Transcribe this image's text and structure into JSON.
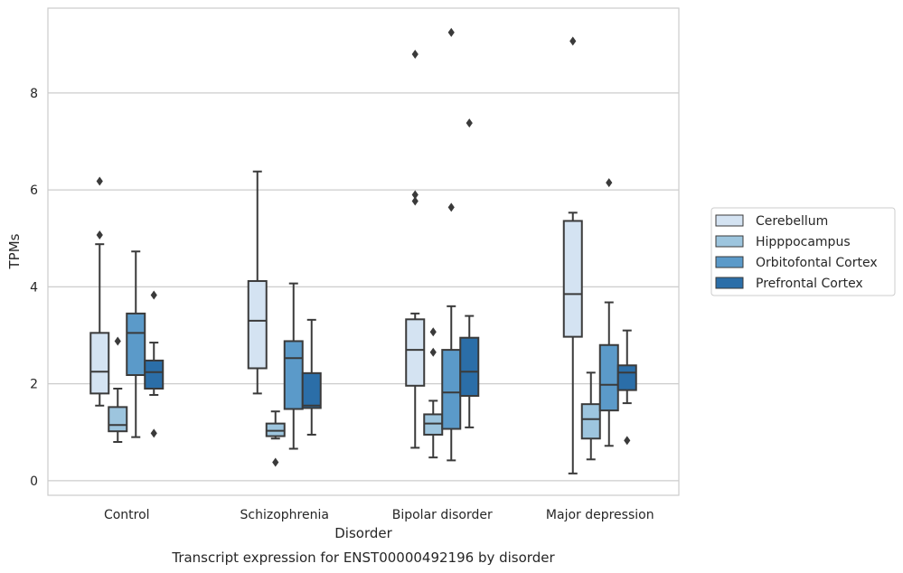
{
  "caption": "Transcript expression for ENST00000492196 by disorder",
  "chart_data": {
    "type": "box",
    "xlabel": "Disorder",
    "ylabel": "TPMs",
    "ylim": [
      -0.3,
      9.75
    ],
    "yticks": [
      0,
      2,
      4,
      6,
      8
    ],
    "grid": "horizontal",
    "legend_placement": "right",
    "categories": [
      "Control",
      "Schizophrenia",
      "Bipolar disorder",
      "Major depression"
    ],
    "series": [
      {
        "name": "Cerebellum",
        "color": "#d4e3f2",
        "boxes": [
          {
            "whislo": 1.55,
            "q1": 1.8,
            "med": 2.25,
            "q3": 3.05,
            "whishi": 4.88,
            "fliers": [
              5.07,
              6.18
            ]
          },
          {
            "whislo": 1.8,
            "q1": 2.32,
            "med": 3.3,
            "q3": 4.12,
            "whishi": 6.38,
            "fliers": []
          },
          {
            "whislo": 0.68,
            "q1": 1.96,
            "med": 2.7,
            "q3": 3.33,
            "whishi": 3.45,
            "fliers": [
              5.77,
              5.9,
              8.8
            ]
          },
          {
            "whislo": 0.15,
            "q1": 2.97,
            "med": 3.85,
            "q3": 5.36,
            "whishi": 5.53,
            "fliers": [
              9.07
            ]
          }
        ]
      },
      {
        "name": "Hipppocampus",
        "color": "#9dc5de",
        "boxes": [
          {
            "whislo": 0.8,
            "q1": 1.02,
            "med": 1.15,
            "q3": 1.52,
            "whishi": 1.9,
            "fliers": [
              2.88
            ]
          },
          {
            "whislo": 0.87,
            "q1": 0.92,
            "med": 1.03,
            "q3": 1.18,
            "whishi": 1.43,
            "fliers": [
              0.38
            ]
          },
          {
            "whislo": 0.48,
            "q1": 0.95,
            "med": 1.18,
            "q3": 1.37,
            "whishi": 1.65,
            "fliers": [
              2.65,
              3.07
            ]
          },
          {
            "whislo": 0.44,
            "q1": 0.87,
            "med": 1.27,
            "q3": 1.58,
            "whishi": 2.23,
            "fliers": []
          }
        ]
      },
      {
        "name": "Orbitofontal Cortex",
        "color": "#5b9ac9",
        "boxes": [
          {
            "whislo": 0.9,
            "q1": 2.18,
            "med": 3.05,
            "q3": 3.45,
            "whishi": 4.73,
            "fliers": []
          },
          {
            "whislo": 0.66,
            "q1": 1.48,
            "med": 2.53,
            "q3": 2.88,
            "whishi": 4.07,
            "fliers": []
          },
          {
            "whislo": 0.42,
            "q1": 1.07,
            "med": 1.82,
            "q3": 2.7,
            "whishi": 3.6,
            "fliers": [
              5.64,
              9.25
            ]
          },
          {
            "whislo": 0.72,
            "q1": 1.45,
            "med": 1.98,
            "q3": 2.8,
            "whishi": 3.68,
            "fliers": [
              6.15
            ]
          }
        ]
      },
      {
        "name": "Prefrontal Cortex",
        "color": "#2b6ea8",
        "boxes": [
          {
            "whislo": 1.77,
            "q1": 1.9,
            "med": 2.24,
            "q3": 2.48,
            "whishi": 2.85,
            "fliers": [
              0.98,
              3.83
            ]
          },
          {
            "whislo": 0.95,
            "q1": 1.5,
            "med": 1.55,
            "q3": 2.22,
            "whishi": 3.32,
            "fliers": []
          },
          {
            "whislo": 1.1,
            "q1": 1.75,
            "med": 2.25,
            "q3": 2.95,
            "whishi": 3.4,
            "fliers": [
              7.38
            ]
          },
          {
            "whislo": 1.6,
            "q1": 1.87,
            "med": 2.23,
            "q3": 2.38,
            "whishi": 3.1,
            "fliers": [
              0.83
            ]
          }
        ]
      }
    ]
  }
}
